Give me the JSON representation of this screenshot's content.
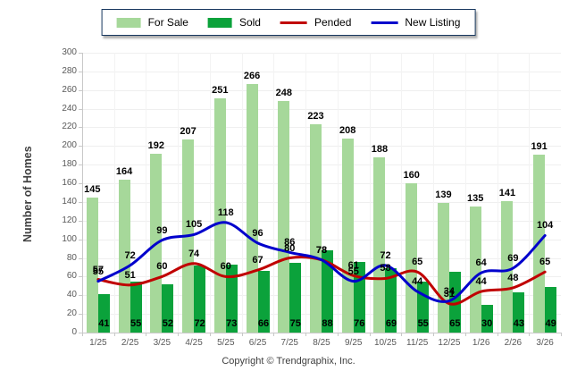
{
  "legend": {
    "items": [
      {
        "label": "For Sale",
        "type": "bar",
        "color": "#A6D89A"
      },
      {
        "label": "Sold",
        "type": "bar",
        "color": "#0BA23B"
      },
      {
        "label": "Pended",
        "type": "line",
        "color": "#C00000"
      },
      {
        "label": "New Listing",
        "type": "line",
        "color": "#0000CC"
      }
    ]
  },
  "chart_data": {
    "type": "combo-bar-line",
    "categories": [
      "1/25",
      "2/25",
      "3/25",
      "4/25",
      "5/25",
      "6/25",
      "7/25",
      "8/25",
      "9/25",
      "10/25",
      "11/25",
      "12/25",
      "1/26",
      "2/26",
      "3/26"
    ],
    "series": [
      {
        "name": "For Sale",
        "type": "bar",
        "color": "#A6D89A",
        "values": [
          145,
          164,
          192,
          207,
          251,
          266,
          248,
          223,
          208,
          188,
          160,
          139,
          135,
          141,
          191
        ]
      },
      {
        "name": "Sold",
        "type": "bar",
        "color": "#0BA23B",
        "values": [
          41,
          55,
          52,
          72,
          73,
          66,
          75,
          88,
          76,
          69,
          55,
          65,
          30,
          43,
          49
        ]
      },
      {
        "name": "Pended",
        "type": "line",
        "color": "#C00000",
        "values": [
          57,
          51,
          60,
          74,
          60,
          67,
          80,
          78,
          61,
          58,
          65,
          31,
          44,
          48,
          65
        ]
      },
      {
        "name": "New Listing",
        "type": "line",
        "color": "#0000CC",
        "values": [
          55,
          72,
          99,
          105,
          118,
          96,
          86,
          78,
          55,
          72,
          44,
          34,
          64,
          69,
          104
        ]
      }
    ],
    "title": "",
    "xlabel": "",
    "ylabel": "Number of Homes",
    "ylim": [
      0,
      300
    ],
    "ytick_step": 20,
    "grid": true,
    "legend_position": "top-center"
  },
  "footer": {
    "copyright": "Copyright © Trendgraphix, Inc."
  }
}
